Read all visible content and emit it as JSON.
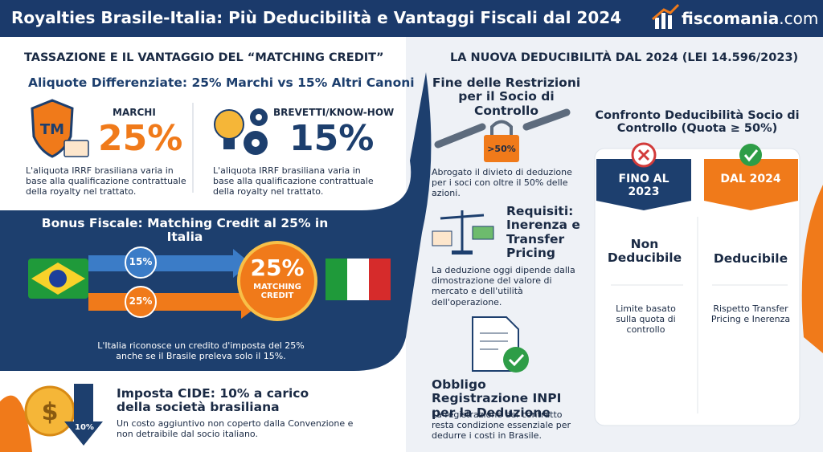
{
  "header": {
    "title": "Royalties Brasile-Italia: Più Deducibilità e Vantaggi Fiscali dal 2024",
    "logo": {
      "name": "fiscomania",
      "domain": ".com"
    }
  },
  "left": {
    "heading": "TASSAZIONE E IL VANTAGGIO DEL “MATCHING CREDIT”",
    "rates": {
      "title": "Aliquote Differenziate: 25% Marchi vs 15% Altri Canoni",
      "items": [
        {
          "label": "MARCHI",
          "rate": "25%",
          "text": "L'aliquota IRRF brasiliana varia in base alla qualificazione contrattuale della royalty nel trattato."
        },
        {
          "label": "BREVETTI/KNOW-HOW",
          "rate": "15%",
          "text": "L'aliquota IRRF brasiliana varia in base alla qualificazione contrattuale della royalty nel trattato."
        }
      ]
    },
    "bonus": {
      "title": "Bonus Fiscale: Matching Credit al 25% in Italia",
      "flows": [
        "15%",
        "25%"
      ],
      "badge": {
        "rate": "25%",
        "label": "MATCHING CREDIT"
      },
      "caption": "L'Italia riconosce un credito d'imposta del 25% anche se il Brasile preleva solo il 15%."
    },
    "cide": {
      "badge": "10%",
      "title": "Imposta CIDE: 10% a carico della società brasiliana",
      "text": "Un costo aggiuntivo non coperto dalla Convenzione e non detraibile dal socio italiano."
    }
  },
  "right": {
    "heading": "LA NUOVA DEDUCIBILITÀ DAL 2024 (LEI 14.596/2023)",
    "items": [
      {
        "title": "Fine delle Restrizioni per il Socio di Controllo",
        "badge": ">50%",
        "text": "Abrogato il divieto di deduzione per i soci con oltre il 50% delle azioni."
      },
      {
        "title": "Requisiti: Inerenza e Transfer Pricing",
        "text": "La deduzione oggi dipende dalla dimostrazione del valore di mercato e dell'utilità dell'operazione."
      },
      {
        "title": "Obbligo Registrazione INPI per la Deduzione",
        "text": "La registrazione del contratto resta condizione essenziale per dedurre i costi in Brasile."
      }
    ],
    "comparison": {
      "title": "Confronto Deducibilità Socio di Controllo (Quota ≥ 50%)",
      "columns": [
        {
          "header": "FINO AL 2023",
          "status": "Non Deducibile",
          "note": "Limite basato sulla quota di controllo"
        },
        {
          "header": "DAL 2024",
          "status": "Deducibile",
          "note": "Rispetto Transfer Pricing e Inerenza"
        }
      ]
    }
  }
}
